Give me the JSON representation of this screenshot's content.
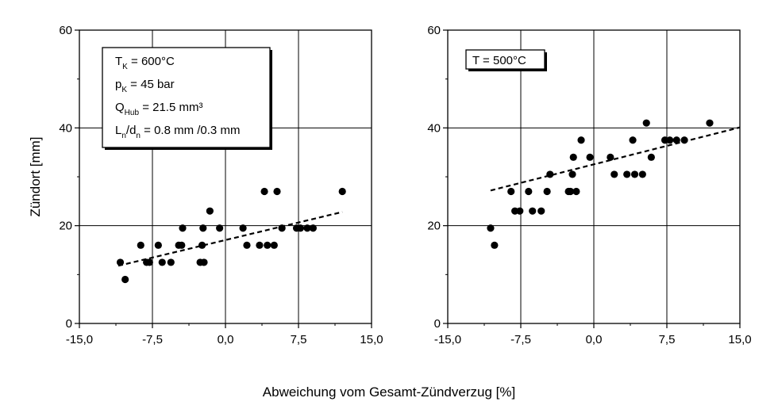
{
  "xlabel": "Abweichung vom Gesamt-Zündverzug  [%]",
  "ylabel": "Zündort  [mm]",
  "chart_data": [
    {
      "type": "scatter",
      "title": "",
      "xlim": [
        -15,
        15
      ],
      "ylim": [
        0,
        60
      ],
      "xticks": [
        "-15,0",
        "-7,5",
        "0,0",
        "7,5",
        "15,0"
      ],
      "yticks": [
        "0",
        "20",
        "40",
        "60"
      ],
      "grid": true,
      "annotation": {
        "line1": {
          "main": "T",
          "sub": "K",
          "rest": " = 600°C"
        },
        "line2": {
          "main": "p",
          "sub": "K",
          "rest": " = 45 bar"
        },
        "line3": {
          "main": "Q",
          "sub": "Hub",
          "rest": " = 21.5 mm³"
        },
        "line4": {
          "main": "L",
          "sub": "n",
          "mid": "/d",
          "sub2": "n",
          "rest": " = 0.8 mm /0.3 mm"
        }
      },
      "points": [
        [
          -10.8,
          12.5
        ],
        [
          -10.3,
          9
        ],
        [
          -8.7,
          16
        ],
        [
          -8.1,
          12.5
        ],
        [
          -7.8,
          12.5
        ],
        [
          -6.9,
          16
        ],
        [
          -6.5,
          12.5
        ],
        [
          -5.6,
          12.5
        ],
        [
          -4.8,
          16
        ],
        [
          -4.5,
          16
        ],
        [
          -4.4,
          19.5
        ],
        [
          -2.6,
          12.5
        ],
        [
          -2.4,
          16
        ],
        [
          -2.3,
          19.5
        ],
        [
          -2.2,
          12.5
        ],
        [
          -1.6,
          23
        ],
        [
          -0.6,
          19.5
        ],
        [
          1.8,
          19.5
        ],
        [
          2.2,
          16
        ],
        [
          3.5,
          16
        ],
        [
          4.0,
          27
        ],
        [
          4.3,
          16
        ],
        [
          5.0,
          16
        ],
        [
          5.3,
          27
        ],
        [
          5.8,
          19.5
        ],
        [
          7.3,
          19.5
        ],
        [
          7.7,
          19.5
        ],
        [
          8.4,
          19.5
        ],
        [
          9.0,
          19.5
        ],
        [
          12.0,
          27
        ]
      ],
      "trend": [
        [
          -11,
          11.8
        ],
        [
          12,
          22.8
        ]
      ]
    },
    {
      "type": "scatter",
      "title": "",
      "xlim": [
        -15,
        15
      ],
      "ylim": [
        0,
        60
      ],
      "xticks": [
        "-15,0",
        "-7,5",
        "0,0",
        "7,5",
        "15,0"
      ],
      "yticks": [
        "0",
        "20",
        "40",
        "60"
      ],
      "grid": true,
      "annotation": {
        "line1": {
          "main": "T = 500°C"
        }
      },
      "points": [
        [
          -10.6,
          19.5
        ],
        [
          -10.2,
          16
        ],
        [
          -8.5,
          27
        ],
        [
          -8.1,
          23
        ],
        [
          -7.6,
          23
        ],
        [
          -6.7,
          27
        ],
        [
          -6.3,
          23
        ],
        [
          -5.4,
          23
        ],
        [
          -4.8,
          27
        ],
        [
          -4.5,
          30.5
        ],
        [
          -2.6,
          27
        ],
        [
          -2.4,
          27
        ],
        [
          -2.2,
          30.5
        ],
        [
          -2.1,
          34
        ],
        [
          -1.8,
          27
        ],
        [
          -1.3,
          37.5
        ],
        [
          -0.4,
          34
        ],
        [
          1.7,
          34
        ],
        [
          2.1,
          30.5
        ],
        [
          3.4,
          30.5
        ],
        [
          4.0,
          37.5
        ],
        [
          4.2,
          30.5
        ],
        [
          5.0,
          30.5
        ],
        [
          5.4,
          41
        ],
        [
          5.9,
          34
        ],
        [
          7.3,
          37.5
        ],
        [
          7.8,
          37.5
        ],
        [
          8.5,
          37.5
        ],
        [
          9.3,
          37.5
        ],
        [
          11.9,
          41
        ]
      ],
      "trend": [
        [
          -10.6,
          27.2
        ],
        [
          15,
          40.1
        ]
      ]
    }
  ]
}
